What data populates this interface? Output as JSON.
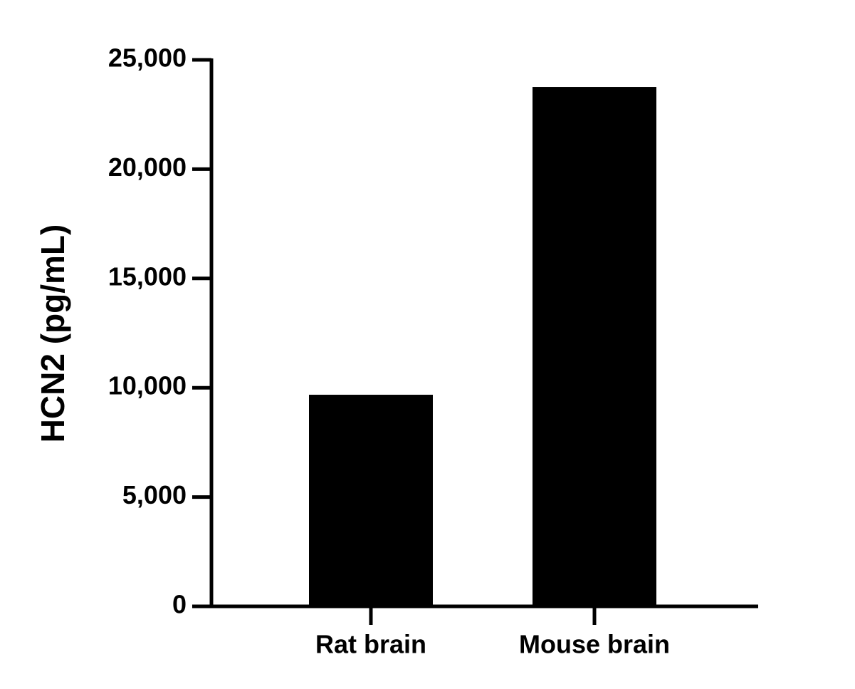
{
  "chart_data": {
    "type": "bar",
    "y_label": "HCN2 (pg/mL)",
    "categories": [
      "Rat brain",
      "Mouse brain"
    ],
    "values": [
      9680,
      23760
    ],
    "color": "#000000",
    "ylim": [
      0,
      25000
    ],
    "yticks": [
      0,
      {
        "value": 5000,
        "label": "5,000"
      },
      {
        "value": 10000,
        "label": "10,000"
      },
      {
        "value": 15000,
        "label": "15,000"
      },
      {
        "value": 20000,
        "label": "20,000"
      },
      {
        "value": 25000,
        "label": "25,000"
      }
    ]
  }
}
